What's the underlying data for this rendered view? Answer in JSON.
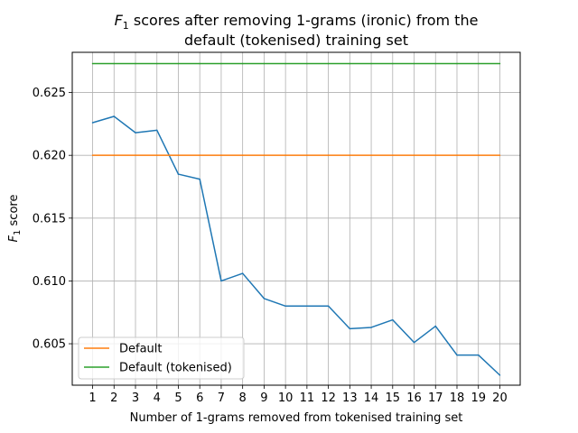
{
  "chart_data": {
    "type": "line",
    "title_prefix": "F",
    "title_sub": "1",
    "title_line1_rest": " scores after removing 1-grams (ironic) from the",
    "title_line2": "default (tokenised) training set",
    "xlabel": "Number of 1-grams removed from tokenised training set",
    "ylabel_main": "F",
    "ylabel_sub": "1",
    "ylabel_rest": " score",
    "x": [
      1,
      2,
      3,
      4,
      5,
      6,
      7,
      8,
      9,
      10,
      11,
      12,
      13,
      14,
      15,
      16,
      17,
      18,
      19,
      20
    ],
    "xlim": [
      0.05,
      20.95
    ],
    "ylim": [
      0.6017,
      0.6282
    ],
    "yticks": [
      0.605,
      0.61,
      0.615,
      0.62,
      0.625
    ],
    "ytick_labels": [
      "0.605",
      "0.610",
      "0.615",
      "0.620",
      "0.625"
    ],
    "grid": true,
    "legend_position": "lower-left",
    "series": [
      {
        "color": "#1f77b4",
        "values": [
          0.6226,
          0.6231,
          0.6218,
          0.622,
          0.6185,
          0.6181,
          0.61,
          0.6106,
          0.6086,
          0.608,
          0.608,
          0.608,
          0.6062,
          0.6063,
          0.6069,
          0.6051,
          0.6064,
          0.6041,
          0.6041,
          0.6025
        ]
      },
      {
        "name": "Default",
        "color": "#ff7f0e",
        "values": [
          0.62,
          0.62,
          0.62,
          0.62,
          0.62,
          0.62,
          0.62,
          0.62,
          0.62,
          0.62,
          0.62,
          0.62,
          0.62,
          0.62,
          0.62,
          0.62,
          0.62,
          0.62,
          0.62,
          0.62
        ]
      },
      {
        "name": "Default (tokenised)",
        "color": "#2ca02c",
        "values": [
          0.6273,
          0.6273,
          0.6273,
          0.6273,
          0.6273,
          0.6273,
          0.6273,
          0.6273,
          0.6273,
          0.6273,
          0.6273,
          0.6273,
          0.6273,
          0.6273,
          0.6273,
          0.6273,
          0.6273,
          0.6273,
          0.6273,
          0.6273
        ]
      }
    ],
    "legend": [
      "Default",
      "Default (tokenised)"
    ]
  }
}
